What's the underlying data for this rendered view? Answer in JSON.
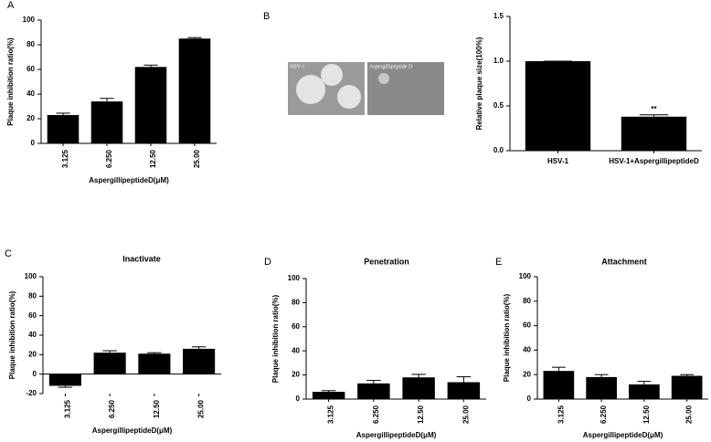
{
  "chart_data": [
    {
      "type": "bar",
      "panel": "A",
      "ylabel": "Plaque inhibition ratio(%)",
      "xlabel": "AspergillipeptideD(μM)",
      "categories": [
        "3.125",
        "6.250",
        "12.50",
        "25.00"
      ],
      "values": [
        23,
        34,
        62,
        85
      ],
      "errors": [
        1.5,
        2.5,
        1.5,
        0.8
      ],
      "color": "#000000",
      "ylim": [
        0,
        100
      ],
      "yticks": [
        0,
        20,
        40,
        60,
        80,
        100
      ],
      "x_label_rotation": 90
    },
    {
      "type": "bar",
      "panel": "B",
      "ylabel": "Relative plaque size(100%)",
      "categories": [
        "HSV-1",
        "HSV-1+AspergillipeptideD"
      ],
      "values": [
        1.0,
        0.38
      ],
      "errors": [
        0,
        0.02
      ],
      "bar_annotations": [
        null,
        "**"
      ],
      "color": "#000000",
      "ylim": [
        0,
        1.5
      ],
      "yticks": [
        {
          "value": 0,
          "label": "0.0"
        },
        0.5,
        {
          "value": 1,
          "label": "1.0"
        },
        1.5
      ],
      "x_label_rotation": 0,
      "images": [
        "HSV-1",
        "Aspergillipeptide D"
      ]
    },
    {
      "type": "bar",
      "panel": "C",
      "title": "Inactivate",
      "ylabel": "Plaque inhibition ratio(%)",
      "xlabel": "AspergillipeptideD(μM)",
      "categories": [
        "3.125",
        "6.250",
        "12.50",
        "25.00"
      ],
      "values": [
        -12,
        22,
        21,
        26
      ],
      "errors": [
        1.5,
        2,
        1,
        2
      ],
      "color": "#000000",
      "ylim": [
        -20,
        100
      ],
      "yticks": [
        -20,
        0,
        20,
        40,
        60,
        80,
        100
      ],
      "x_label_rotation": 90
    },
    {
      "type": "bar",
      "panel": "D",
      "title": "Penetration",
      "ylabel": "Plaque inhibition ratio(%)",
      "xlabel": "AspergillipeptideD(μM)",
      "categories": [
        "3.125",
        "6.250",
        "12.50",
        "25.00"
      ],
      "values": [
        6,
        13,
        18,
        14
      ],
      "errors": [
        1,
        2.5,
        2.5,
        4.5
      ],
      "color": "#000000",
      "ylim": [
        0,
        100
      ],
      "yticks": [
        0,
        20,
        40,
        60,
        80,
        100
      ],
      "x_label_rotation": 90
    },
    {
      "type": "bar",
      "panel": "E",
      "title": "Attachment",
      "ylabel": "Plaque inhibition ratio(%)",
      "xlabel": "AspergillipeptideD(μM)",
      "categories": [
        "3.125",
        "6.250",
        "12.50",
        "25.00"
      ],
      "values": [
        23,
        18,
        12,
        19
      ],
      "errors": [
        3,
        2,
        2.5,
        1
      ],
      "color": "#000000",
      "ylim": [
        0,
        100
      ],
      "yticks": [
        0,
        20,
        40,
        60,
        80,
        100
      ],
      "x_label_rotation": 90
    }
  ]
}
